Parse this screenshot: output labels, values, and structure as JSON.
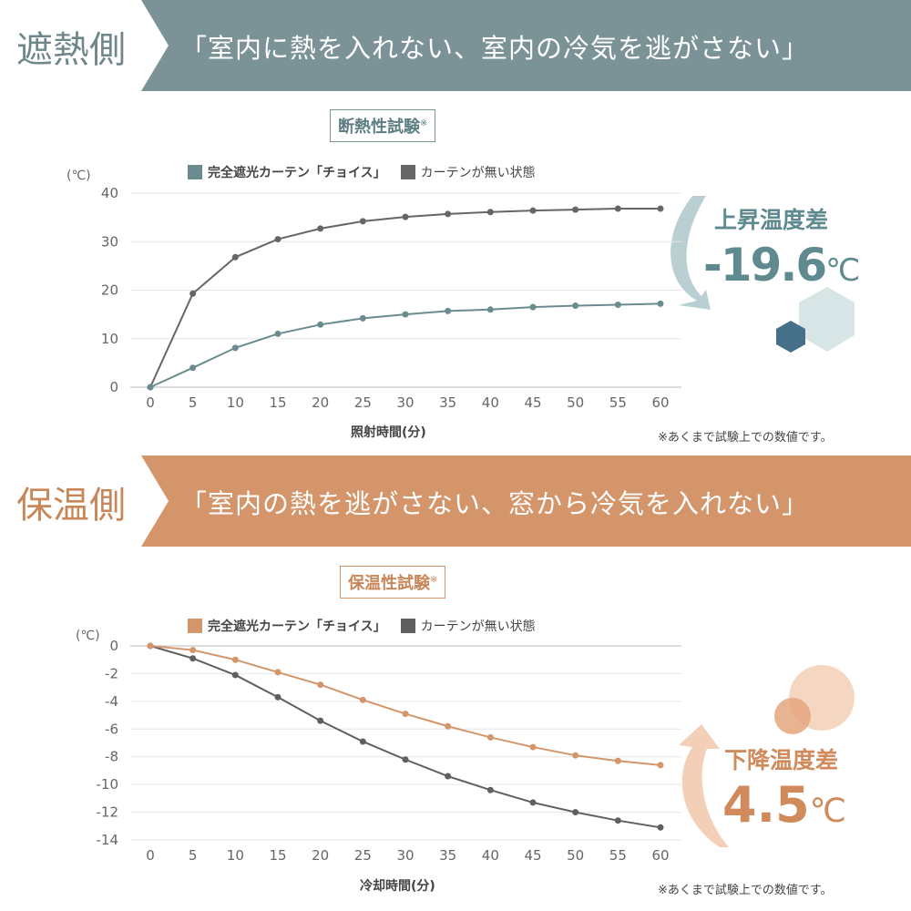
{
  "top": {
    "tag": "遮熱側",
    "slogan": "「室内に熱を入れない、室内の冷気を逃がさない」",
    "banner_color": "#7b9397",
    "test_title": "断熱性試験",
    "test_mark": "※",
    "callout_label": "上昇温度差",
    "callout_value": "-19.6",
    "callout_unit": "℃",
    "note": "※あくまで試験上での数値です。"
  },
  "bottom": {
    "tag": "保温側",
    "slogan": "「室内の熱を逃がさない、窓から冷気を入れない」",
    "banner_color": "#d4956a",
    "test_title": "保温性試験",
    "test_mark": "※",
    "callout_label": "下降温度差",
    "callout_value": "4.5",
    "callout_unit": "℃",
    "note": "※あくまで試験上での数値です。"
  },
  "chart_data": [
    {
      "type": "line",
      "ylabel": "(℃)",
      "xlabel": "照射時間(分)",
      "x": [
        0,
        5,
        10,
        15,
        20,
        25,
        30,
        35,
        40,
        45,
        50,
        55,
        60
      ],
      "ylim": [
        0,
        40
      ],
      "yticks": [
        0,
        10,
        20,
        30,
        40
      ],
      "grid": true,
      "legend": "top",
      "series": [
        {
          "name": "完全遮光カーテン「チョイス」",
          "color": "#6a8c90",
          "values": [
            0,
            4.0,
            8.1,
            11.0,
            12.9,
            14.2,
            15.0,
            15.7,
            16.0,
            16.5,
            16.8,
            17.0,
            17.2
          ]
        },
        {
          "name": "カーテンが無い状態",
          "color": "#666666",
          "values": [
            0,
            19.3,
            26.8,
            30.5,
            32.7,
            34.2,
            35.1,
            35.7,
            36.1,
            36.4,
            36.6,
            36.8,
            36.8
          ]
        }
      ]
    },
    {
      "type": "line",
      "ylabel": "(℃)",
      "xlabel": "冷却時間(分)",
      "x": [
        0,
        5,
        10,
        15,
        20,
        25,
        30,
        35,
        40,
        45,
        50,
        55,
        60
      ],
      "ylim": [
        -14,
        0
      ],
      "yticks": [
        0,
        -2,
        -4,
        -6,
        -8,
        -10,
        -12,
        -14
      ],
      "grid": true,
      "legend": "top",
      "series": [
        {
          "name": "完全遮光カーテン「チョイス」",
          "color": "#d4956a",
          "values": [
            0,
            -0.3,
            -1.0,
            -1.9,
            -2.8,
            -3.9,
            -4.9,
            -5.8,
            -6.6,
            -7.3,
            -7.9,
            -8.3,
            -8.6
          ]
        },
        {
          "name": "カーテンが無い状態",
          "color": "#5f5f5f",
          "values": [
            0,
            -0.9,
            -2.1,
            -3.7,
            -5.4,
            -6.9,
            -8.2,
            -9.4,
            -10.4,
            -11.3,
            -12.0,
            -12.6,
            -13.1
          ]
        }
      ]
    }
  ]
}
